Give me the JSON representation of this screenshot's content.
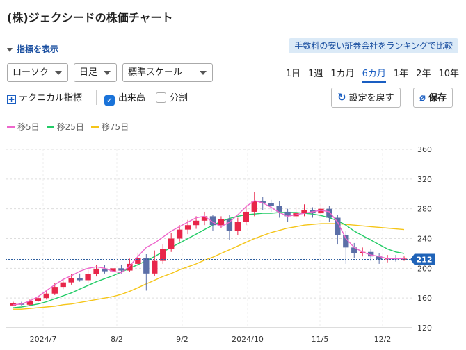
{
  "title": "(株)ジェクシードの株価チャート",
  "indicator_toggle": "指標を表示",
  "ranking_link": "手数料の安い証券会社をランキングで比較",
  "selects": {
    "chart_type": "ローソク",
    "interval": "日足",
    "scale": "標準スケール"
  },
  "periods": [
    "1日",
    "1週",
    "1カ月",
    "6カ月",
    "1年",
    "2年",
    "10年"
  ],
  "active_period": "6カ月",
  "options": {
    "technical": "テクニカル指標",
    "volume": "出来高",
    "volume_checked": true,
    "split": "分割",
    "split_checked": false
  },
  "buttons": {
    "reset": "設定を戻す",
    "save": "保存"
  },
  "legend": [
    {
      "label": "移5日",
      "color": "#ee66cc"
    },
    {
      "label": "移25日",
      "color": "#22cc66"
    },
    {
      "label": "移75日",
      "color": "#f5c518"
    }
  ],
  "chart_data": {
    "type": "candlestick",
    "x_labels": [
      "2024/7",
      "8/2",
      "9/2",
      "2024/10",
      "11/5",
      "12/2"
    ],
    "y_ticks": [
      120,
      160,
      200,
      240,
      280,
      320,
      360
    ],
    "ylim": [
      120,
      360
    ],
    "current_price": 212,
    "up_color": "#e8264a",
    "down_color": "#5b6fa8",
    "ma5": [
      151,
      152,
      156,
      162,
      170,
      178,
      185,
      190,
      196,
      200,
      202,
      200,
      196,
      194,
      203,
      216,
      228,
      234,
      242,
      250,
      256,
      262,
      268,
      270,
      262,
      256,
      262,
      272,
      283,
      291,
      288,
      282,
      275,
      270,
      272,
      274,
      276,
      278,
      276,
      262,
      240,
      228,
      222,
      218,
      216,
      213,
      213,
      213
    ],
    "ma25": [
      147,
      148,
      150,
      152,
      155,
      159,
      163,
      167,
      172,
      177,
      182,
      186,
      190,
      195,
      200,
      205,
      210,
      216,
      222,
      228,
      234,
      240,
      246,
      252,
      258,
      263,
      267,
      270,
      272,
      273,
      274,
      274,
      275,
      275,
      275,
      274,
      273,
      271,
      268,
      264,
      258,
      250,
      244,
      238,
      232,
      226,
      222,
      220
    ],
    "ma75": [
      145,
      145,
      146,
      147,
      148,
      149,
      151,
      152,
      154,
      156,
      158,
      160,
      162,
      165,
      169,
      174,
      179,
      184,
      189,
      193,
      198,
      202,
      206,
      211,
      215,
      220,
      225,
      230,
      235,
      240,
      244,
      248,
      251,
      254,
      256,
      258,
      259,
      260,
      260,
      260,
      259,
      258,
      257,
      256,
      255,
      254,
      253,
      252
    ],
    "candles": [
      [
        150,
        153,
        149,
        155
      ],
      [
        153,
        151,
        150,
        155
      ],
      [
        151,
        156,
        150,
        158
      ],
      [
        156,
        160,
        155,
        163
      ],
      [
        160,
        166,
        158,
        170
      ],
      [
        166,
        175,
        164,
        180
      ],
      [
        175,
        181,
        172,
        186
      ],
      [
        181,
        187,
        178,
        192
      ],
      [
        187,
        184,
        182,
        193
      ],
      [
        184,
        192,
        180,
        198
      ],
      [
        192,
        199,
        189,
        205
      ],
      [
        199,
        196,
        193,
        204
      ],
      [
        196,
        200,
        194,
        207
      ],
      [
        200,
        197,
        193,
        205
      ],
      [
        197,
        206,
        195,
        213
      ],
      [
        206,
        214,
        203,
        221
      ],
      [
        214,
        193,
        170,
        219
      ],
      [
        193,
        210,
        190,
        224
      ],
      [
        210,
        226,
        206,
        232
      ],
      [
        226,
        240,
        222,
        247
      ],
      [
        240,
        252,
        236,
        258
      ],
      [
        252,
        258,
        246,
        265
      ],
      [
        258,
        264,
        253,
        270
      ],
      [
        264,
        270,
        258,
        276
      ],
      [
        270,
        258,
        250,
        272
      ],
      [
        258,
        266,
        254,
        270
      ],
      [
        266,
        250,
        238,
        272
      ],
      [
        250,
        262,
        245,
        268
      ],
      [
        262,
        276,
        258,
        285
      ],
      [
        276,
        290,
        270,
        303
      ],
      [
        290,
        288,
        278,
        296
      ],
      [
        288,
        284,
        276,
        292
      ],
      [
        284,
        276,
        268,
        290
      ],
      [
        276,
        270,
        262,
        280
      ],
      [
        270,
        274,
        266,
        282
      ],
      [
        274,
        278,
        270,
        286
      ],
      [
        278,
        274,
        268,
        282
      ],
      [
        274,
        280,
        270,
        286
      ],
      [
        280,
        268,
        262,
        284
      ],
      [
        268,
        245,
        232,
        272
      ],
      [
        245,
        228,
        206,
        250
      ],
      [
        228,
        220,
        214,
        234
      ],
      [
        220,
        222,
        216,
        228
      ],
      [
        222,
        216,
        210,
        226
      ],
      [
        216,
        212,
        206,
        220
      ],
      [
        212,
        214,
        208,
        218
      ],
      [
        214,
        212,
        209,
        218
      ],
      [
        212,
        213,
        210,
        216
      ]
    ]
  }
}
